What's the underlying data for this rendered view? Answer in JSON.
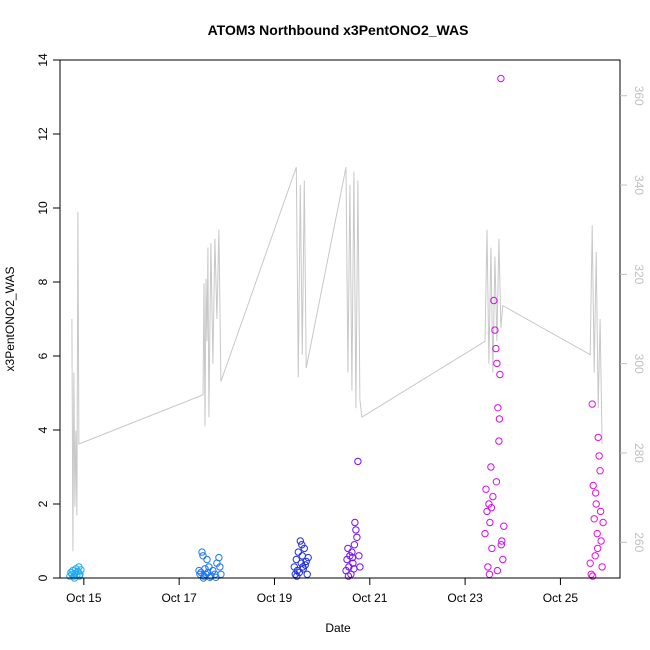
{
  "chart_data": {
    "type": "scatter",
    "title": "ATOM3 Northbound x3PentONO2_WAS",
    "xlabel": "Date",
    "ylabel": "x3PentONO2_WAS",
    "xlim": [
      "2016-10-14T12:00",
      "2016-10-26T06:00"
    ],
    "ylim": [
      0,
      14
    ],
    "y_ticks": [
      0,
      2,
      4,
      6,
      8,
      10,
      12,
      14
    ],
    "x_ticks": [
      {
        "date": "2016-10-15T00:00",
        "label": "Oct 15"
      },
      {
        "date": "2016-10-17T00:00",
        "label": "Oct 17"
      },
      {
        "date": "2016-10-19T00:00",
        "label": "Oct 19"
      },
      {
        "date": "2016-10-21T00:00",
        "label": "Oct 21"
      },
      {
        "date": "2016-10-23T00:00",
        "label": "Oct 23"
      },
      {
        "date": "2016-10-25T00:00",
        "label": "Oct 25"
      }
    ],
    "y2lim": [
      252,
      368
    ],
    "y2_ticks": [
      260,
      280,
      300,
      320,
      340,
      360
    ],
    "grid": false,
    "legend": "none",
    "colors": {
      "flight1": "#1eaaf0",
      "flight2": "#1e78f0",
      "flight3": "#2030e0",
      "flight4": "#7a10f0",
      "flight5": "#d20ef0",
      "flight6": "#e810e0",
      "secondary_line": "#c8c8c8",
      "right_axis": "#c0c0c0"
    },
    "series": [
      {
        "color_key": "flight1",
        "points": [
          [
            "2016-10-14T17:00",
            0.05
          ],
          [
            "2016-10-14T17:30",
            0.15
          ],
          [
            "2016-10-14T18:00",
            0.1
          ],
          [
            "2016-10-14T18:30",
            0.2
          ],
          [
            "2016-10-14T19:00",
            0.05
          ],
          [
            "2016-10-14T19:30",
            0.12
          ],
          [
            "2016-10-14T20:00",
            0.25
          ],
          [
            "2016-10-14T20:30",
            0.08
          ],
          [
            "2016-10-14T21:00",
            0.18
          ],
          [
            "2016-10-14T21:30",
            0.3
          ],
          [
            "2016-10-14T22:00",
            0.1
          ],
          [
            "2016-10-14T22:30",
            0.22
          ],
          [
            "2016-10-14T19:15",
            0.0
          ],
          [
            "2016-10-14T21:45",
            0.05
          ]
        ]
      },
      {
        "color_key": "flight2",
        "points": [
          [
            "2016-10-17T10:00",
            0.2
          ],
          [
            "2016-10-17T10:30",
            0.1
          ],
          [
            "2016-10-17T11:00",
            0.15
          ],
          [
            "2016-10-17T11:30",
            0.7
          ],
          [
            "2016-10-17T12:00",
            0.6
          ],
          [
            "2016-10-17T12:30",
            0.05
          ],
          [
            "2016-10-17T13:00",
            0.25
          ],
          [
            "2016-10-17T13:30",
            0.1
          ],
          [
            "2016-10-17T14:00",
            0.5
          ],
          [
            "2016-10-17T14:30",
            0.15
          ],
          [
            "2016-10-17T15:00",
            0.3
          ],
          [
            "2016-10-17T16:00",
            0.05
          ],
          [
            "2016-10-17T17:00",
            0.2
          ],
          [
            "2016-10-17T18:00",
            0.1
          ],
          [
            "2016-10-17T19:00",
            0.4
          ],
          [
            "2016-10-17T20:00",
            0.55
          ],
          [
            "2016-10-17T20:30",
            0.3
          ],
          [
            "2016-10-17T21:00",
            0.1
          ],
          [
            "2016-10-17T12:15",
            0.0
          ],
          [
            "2016-10-17T15:30",
            0.02
          ],
          [
            "2016-10-17T18:30",
            0.02
          ]
        ]
      },
      {
        "color_key": "flight3",
        "points": [
          [
            "2016-10-19T10:00",
            0.3
          ],
          [
            "2016-10-19T10:30",
            0.1
          ],
          [
            "2016-10-19T11:00",
            0.5
          ],
          [
            "2016-10-19T11:30",
            0.2
          ],
          [
            "2016-10-19T12:00",
            0.7
          ],
          [
            "2016-10-19T12:30",
            0.15
          ],
          [
            "2016-10-19T13:00",
            1.0
          ],
          [
            "2016-10-19T13:30",
            0.4
          ],
          [
            "2016-10-19T14:00",
            0.6
          ],
          [
            "2016-10-19T14:30",
            0.25
          ],
          [
            "2016-10-19T15:00",
            0.8
          ],
          [
            "2016-10-19T15:30",
            0.35
          ],
          [
            "2016-10-19T16:00",
            0.45
          ],
          [
            "2016-10-19T16:30",
            0.1
          ],
          [
            "2016-10-19T17:00",
            0.55
          ],
          [
            "2016-10-19T11:15",
            0.05
          ],
          [
            "2016-10-19T13:45",
            0.9
          ],
          [
            "2016-10-19T14:15",
            0.3
          ]
        ]
      },
      {
        "color_key": "flight4",
        "points": [
          [
            "2016-10-20T12:00",
            0.2
          ],
          [
            "2016-10-20T12:30",
            0.5
          ],
          [
            "2016-10-20T13:00",
            0.8
          ],
          [
            "2016-10-20T13:30",
            0.3
          ],
          [
            "2016-10-20T14:00",
            0.6
          ],
          [
            "2016-10-20T14:30",
            0.1
          ],
          [
            "2016-10-20T15:00",
            0.7
          ],
          [
            "2016-10-20T15:30",
            0.4
          ],
          [
            "2016-10-20T16:00",
            0.25
          ],
          [
            "2016-10-20T16:30",
            1.5
          ],
          [
            "2016-10-20T17:00",
            1.3
          ],
          [
            "2016-10-20T17:30",
            1.1
          ],
          [
            "2016-10-20T18:00",
            3.15
          ],
          [
            "2016-10-20T18:30",
            0.6
          ],
          [
            "2016-10-20T19:00",
            0.3
          ],
          [
            "2016-10-20T13:15",
            0.05
          ],
          [
            "2016-10-20T15:15",
            0.55
          ],
          [
            "2016-10-20T16:15",
            0.9
          ]
        ]
      },
      {
        "color_key": "flight5",
        "points": [
          [
            "2016-10-23T10:00",
            1.2
          ],
          [
            "2016-10-23T10:30",
            2.4
          ],
          [
            "2016-10-23T11:00",
            1.8
          ],
          [
            "2016-10-23T11:30",
            0.3
          ],
          [
            "2016-10-23T12:00",
            2.0
          ],
          [
            "2016-10-23T12:30",
            1.5
          ],
          [
            "2016-10-23T13:00",
            3.0
          ],
          [
            "2016-10-23T13:30",
            0.8
          ],
          [
            "2016-10-23T14:00",
            2.2
          ],
          [
            "2016-10-23T14:30",
            7.5
          ],
          [
            "2016-10-23T15:00",
            6.7
          ],
          [
            "2016-10-23T15:30",
            6.2
          ],
          [
            "2016-10-23T16:00",
            5.8
          ],
          [
            "2016-10-23T16:30",
            4.6
          ],
          [
            "2016-10-23T17:00",
            3.7
          ],
          [
            "2016-10-23T17:30",
            5.5
          ],
          [
            "2016-10-23T18:00",
            13.5
          ],
          [
            "2016-10-23T18:30",
            1.0
          ],
          [
            "2016-10-23T19:00",
            0.5
          ],
          [
            "2016-10-23T19:30",
            1.4
          ],
          [
            "2016-10-23T12:15",
            0.1
          ],
          [
            "2016-10-23T13:15",
            1.9
          ],
          [
            "2016-10-23T15:45",
            2.6
          ],
          [
            "2016-10-23T16:15",
            0.2
          ],
          [
            "2016-10-23T17:15",
            4.3
          ],
          [
            "2016-10-23T18:15",
            0.9
          ]
        ]
      },
      {
        "color_key": "flight6",
        "points": [
          [
            "2016-10-25T15:00",
            0.4
          ],
          [
            "2016-10-25T15:30",
            0.1
          ],
          [
            "2016-10-25T16:00",
            4.7
          ],
          [
            "2016-10-25T16:30",
            2.5
          ],
          [
            "2016-10-25T17:00",
            1.6
          ],
          [
            "2016-10-25T17:30",
            0.6
          ],
          [
            "2016-10-25T18:00",
            2.0
          ],
          [
            "2016-10-25T18:30",
            1.2
          ],
          [
            "2016-10-25T19:00",
            3.8
          ],
          [
            "2016-10-25T19:30",
            3.3
          ],
          [
            "2016-10-25T20:00",
            2.9
          ],
          [
            "2016-10-25T20:30",
            1.0
          ],
          [
            "2016-10-25T21:00",
            0.3
          ],
          [
            "2016-10-25T21:30",
            1.5
          ],
          [
            "2016-10-25T16:15",
            0.05
          ],
          [
            "2016-10-25T17:45",
            2.3
          ],
          [
            "2016-10-25T18:45",
            0.8
          ],
          [
            "2016-10-25T20:15",
            1.8
          ]
        ]
      }
    ],
    "secondary_series": {
      "axis": "right",
      "points": [
        [
          "2016-10-14T18:00",
          310
        ],
        [
          "2016-10-14T18:30",
          258
        ],
        [
          "2016-10-14T19:00",
          298
        ],
        [
          "2016-10-14T19:30",
          268
        ],
        [
          "2016-10-14T20:00",
          285
        ],
        [
          "2016-10-14T20:30",
          266
        ],
        [
          "2016-10-14T21:00",
          334
        ],
        [
          "2016-10-14T21:30",
          282
        ],
        [
          "2016-10-17T12:00",
          293
        ],
        [
          "2016-10-17T12:30",
          318
        ],
        [
          "2016-10-17T13:00",
          286
        ],
        [
          "2016-10-17T13:30",
          319
        ],
        [
          "2016-10-17T14:00",
          305
        ],
        [
          "2016-10-17T14:30",
          326
        ],
        [
          "2016-10-17T15:00",
          288
        ],
        [
          "2016-10-17T16:00",
          327
        ],
        [
          "2016-10-17T17:00",
          300
        ],
        [
          "2016-10-17T18:00",
          328
        ],
        [
          "2016-10-17T19:00",
          310
        ],
        [
          "2016-10-17T20:00",
          330
        ],
        [
          "2016-10-17T21:00",
          296
        ],
        [
          "2016-10-19T11:00",
          344
        ],
        [
          "2016-10-19T12:00",
          297
        ],
        [
          "2016-10-19T13:00",
          340
        ],
        [
          "2016-10-19T14:00",
          302
        ],
        [
          "2016-10-19T15:00",
          341
        ],
        [
          "2016-10-19T16:00",
          299
        ],
        [
          "2016-10-20T12:00",
          344
        ],
        [
          "2016-10-20T13:00",
          298
        ],
        [
          "2016-10-20T14:00",
          340
        ],
        [
          "2016-10-20T15:00",
          294
        ],
        [
          "2016-10-20T16:00",
          343
        ],
        [
          "2016-10-20T17:00",
          290
        ],
        [
          "2016-10-20T18:00",
          341
        ],
        [
          "2016-10-20T19:00",
          292
        ],
        [
          "2016-10-20T20:00",
          288
        ],
        [
          "2016-10-23T10:00",
          305
        ],
        [
          "2016-10-23T11:00",
          330
        ],
        [
          "2016-10-23T12:00",
          300
        ],
        [
          "2016-10-23T13:00",
          326
        ],
        [
          "2016-10-23T14:00",
          298
        ],
        [
          "2016-10-23T15:00",
          324
        ],
        [
          "2016-10-23T16:00",
          305
        ],
        [
          "2016-10-23T17:00",
          328
        ],
        [
          "2016-10-23T18:00",
          308
        ],
        [
          "2016-10-23T19:00",
          313
        ],
        [
          "2016-10-25T15:00",
          302
        ],
        [
          "2016-10-25T16:00",
          331
        ],
        [
          "2016-10-25T17:00",
          298
        ],
        [
          "2016-10-25T18:00",
          325
        ],
        [
          "2016-10-25T19:00",
          290
        ],
        [
          "2016-10-25T20:00",
          310
        ],
        [
          "2016-10-25T21:00",
          282
        ]
      ]
    }
  }
}
